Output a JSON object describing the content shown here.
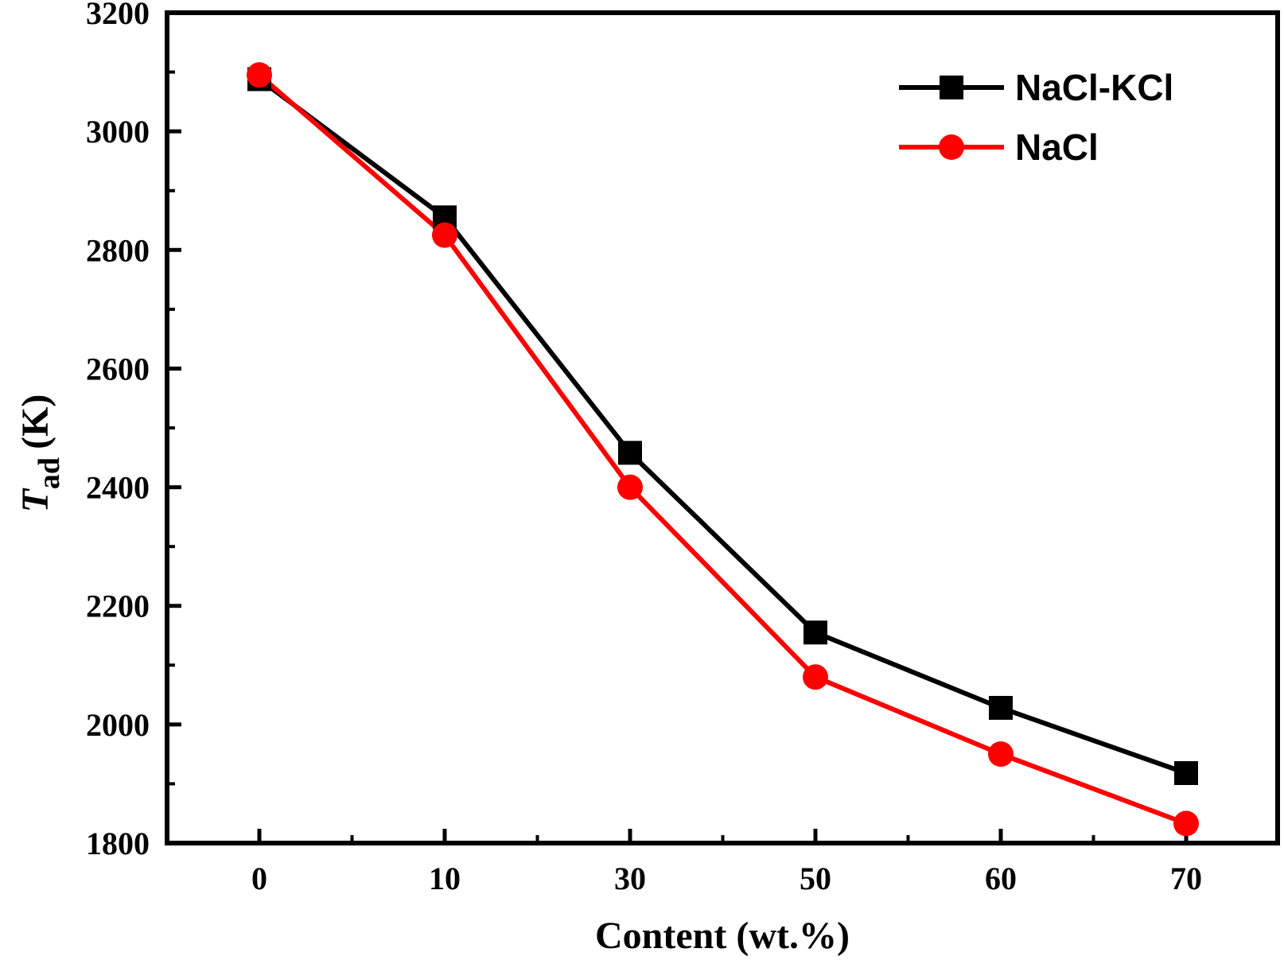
{
  "chart_data": {
    "type": "line",
    "categories": [
      "0",
      "10",
      "30",
      "50",
      "60",
      "70"
    ],
    "series": [
      {
        "name": "NaCl-KCl",
        "color": "#000000",
        "marker": "square",
        "values": [
          3088,
          2855,
          2458,
          2155,
          2028,
          1918
        ]
      },
      {
        "name": "NaCl",
        "color": "#ff0000",
        "marker": "circle",
        "values": [
          3095,
          2825,
          2400,
          2080,
          1950,
          1833
        ]
      }
    ],
    "xlabel": "Content (wt.%)",
    "ylabel_main": "T",
    "ylabel_sub": "ad",
    "ylabel_unit": "(K)",
    "ylim": [
      1800,
      3200
    ],
    "yticks": [
      "1800",
      "2000",
      "2200",
      "2400",
      "2600",
      "2800",
      "3000",
      "3200"
    ],
    "grid": false,
    "legend_position": "top-right"
  }
}
